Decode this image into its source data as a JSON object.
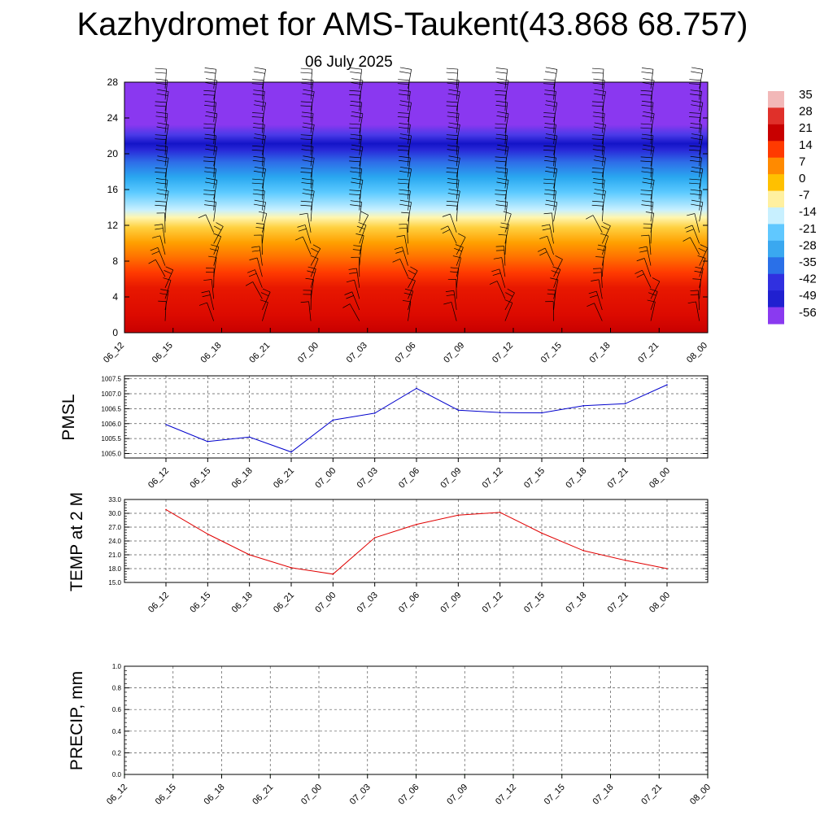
{
  "header": {
    "title": "Kazhydromet for AMS-Taukent(43.868 68.757)",
    "date": "06 July 2025"
  },
  "colorbar": {
    "labels": [
      "35",
      "28",
      "21",
      "14",
      "7",
      "0",
      "-7",
      "-14",
      "-21",
      "-28",
      "-35",
      "-42",
      "-49",
      "-56"
    ],
    "colors_top_to_bottom": [
      "#f2b8b8",
      "#e0302a",
      "#c80000",
      "#ff3a00",
      "#ff8a00",
      "#ffc000",
      "#fff0a0",
      "#c8f0ff",
      "#60c8ff",
      "#3aa8f0",
      "#2a70e8",
      "#3030e0",
      "#2020d0",
      "#8a3af0"
    ]
  },
  "chart_data": [
    {
      "type": "heatmap",
      "name": "temperature-wind-cross-section",
      "title": "",
      "xlabel": "",
      "ylabel": "",
      "x": [
        "06_12",
        "06_15",
        "06_18",
        "06_21",
        "07_00",
        "07_03",
        "07_06",
        "07_09",
        "07_12",
        "07_15",
        "07_18",
        "07_21",
        "08_00"
      ],
      "y_ticks": [
        0,
        4,
        8,
        12,
        16,
        20,
        24,
        28
      ],
      "ylim": [
        0,
        28
      ],
      "z_range": [
        -56,
        35
      ],
      "profile_description_by_level": {
        "0": 33,
        "2": 28,
        "4": 24,
        "6": 20,
        "8": 14,
        "10": 8,
        "12": 0,
        "13": -7,
        "14": -14,
        "16": -28,
        "18": -42,
        "20": -52,
        "21": -56,
        "23": -60,
        "28": -62
      },
      "wind_barbs": true,
      "grid": false
    },
    {
      "type": "line",
      "name": "pmsl",
      "ylabel": "PMSL",
      "x": [
        "06_12",
        "06_15",
        "06_18",
        "06_21",
        "07_00",
        "07_03",
        "07_06",
        "07_09",
        "07_12",
        "07_15",
        "07_18",
        "07_21",
        "08_00"
      ],
      "series": [
        {
          "values": [
            1005.97,
            1005.4,
            1005.55,
            1005.05,
            1006.12,
            1006.35,
            1007.18,
            1006.45,
            1006.37,
            1006.36,
            1006.6,
            1006.67,
            1007.3
          ],
          "color": "#0000cc"
        }
      ],
      "y_ticks": [
        "1005.0",
        "1005.5",
        "1006.0",
        "1006.5",
        "1007.0",
        "1007.5"
      ],
      "ylim": [
        1004.85,
        1007.6
      ],
      "grid": true
    },
    {
      "type": "line",
      "name": "temp2m",
      "ylabel": "TEMP at 2 M",
      "x": [
        "06_12",
        "06_15",
        "06_18",
        "06_21",
        "07_00",
        "07_03",
        "07_06",
        "07_09",
        "07_12",
        "07_15",
        "07_18",
        "07_21",
        "08_00"
      ],
      "series": [
        {
          "values": [
            30.8,
            25.5,
            21.0,
            18.2,
            16.8,
            24.7,
            27.6,
            29.6,
            30.2,
            25.7,
            21.9,
            19.8,
            18.0
          ],
          "color": "#e00000"
        }
      ],
      "y_ticks": [
        "15.0",
        "18.0",
        "21.0",
        "24.0",
        "27.0",
        "30.0",
        "33.0"
      ],
      "ylim": [
        15,
        33
      ],
      "grid": true
    },
    {
      "type": "line",
      "name": "precip",
      "ylabel": "PRECIP, mm",
      "x": [
        "06_12",
        "06_15",
        "06_18",
        "06_21",
        "07_00",
        "07_03",
        "07_06",
        "07_09",
        "07_12",
        "07_15",
        "07_18",
        "07_21",
        "08_00"
      ],
      "series": [
        {
          "values": [
            0,
            0,
            0,
            0,
            0,
            0,
            0,
            0,
            0,
            0,
            0,
            0,
            0
          ],
          "color": "#008000"
        }
      ],
      "y_ticks": [
        "0.0",
        "0.2",
        "0.4",
        "0.6",
        "0.8",
        "1.0"
      ],
      "ylim": [
        0,
        1
      ],
      "grid": true
    }
  ]
}
